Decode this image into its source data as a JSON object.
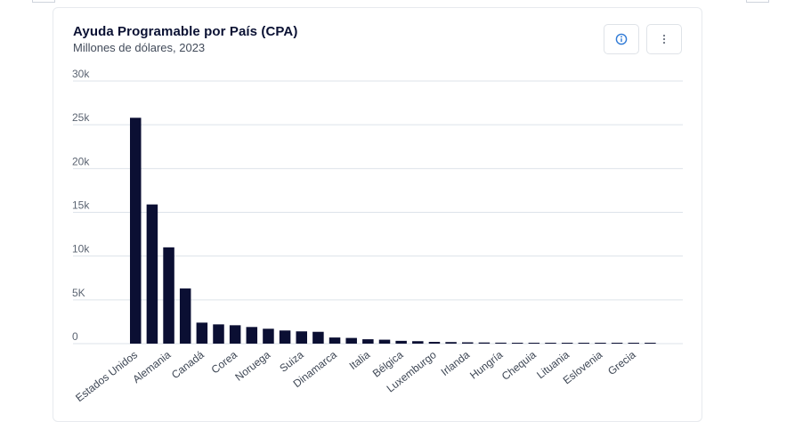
{
  "header": {
    "title": "Ayuda Programable por País (CPA)",
    "subtitle": "Millones de dólares, 2023"
  },
  "toolbar": {
    "info_icon": "info-circle-icon",
    "menu_icon": "kebab-menu-icon"
  },
  "colors": {
    "bar": "#0b0f33",
    "grid": "#dde3ea",
    "accent": "#2f7ad6"
  },
  "chart_data": {
    "type": "bar",
    "title": "Ayuda Programable por País (CPA)",
    "subtitle": "Millones de dólares, 2023",
    "ylim": [
      0,
      30000
    ],
    "yticks": [
      {
        "value": 0,
        "label": "0"
      },
      {
        "value": 5000,
        "label": "5K"
      },
      {
        "value": 10000,
        "label": "10k"
      },
      {
        "value": 15000,
        "label": "15k"
      },
      {
        "value": 20000,
        "label": "20k"
      },
      {
        "value": 25000,
        "label": "25k"
      },
      {
        "value": 30000,
        "label": "30k"
      }
    ],
    "grid": true,
    "categories": [
      "Estados Unidos",
      "",
      "Alemania",
      "",
      "Canadá",
      "",
      "Corea",
      "",
      "Noruega",
      "",
      "Suiza",
      "",
      "Dinamarca",
      "",
      "Italia",
      "",
      "Bélgica",
      "",
      "Luxemburgo",
      "",
      "Irlanda",
      "",
      "Hungría",
      "",
      "Chequia",
      "",
      "Lituania",
      "",
      "Eslovenia",
      "",
      "Grecia",
      ""
    ],
    "values": [
      25800,
      15900,
      11000,
      6300,
      2400,
      2200,
      2100,
      1900,
      1700,
      1500,
      1400,
      1350,
      700,
      650,
      500,
      450,
      320,
      280,
      200,
      180,
      150,
      130,
      110,
      100,
      80,
      70,
      60,
      50,
      40,
      30,
      25,
      20
    ]
  }
}
